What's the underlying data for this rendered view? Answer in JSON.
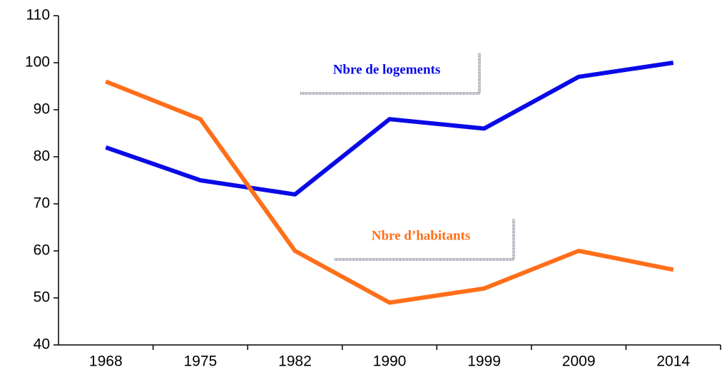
{
  "chart_data": {
    "type": "line",
    "categories": [
      "1968",
      "1975",
      "1982",
      "1990",
      "1999",
      "2009",
      "2014"
    ],
    "series": [
      {
        "name": "Nbre de logements",
        "color": "#0a0ae6",
        "values": [
          82,
          75,
          72,
          88,
          86,
          97,
          100
        ]
      },
      {
        "name": "Nbre d’habitants",
        "color": "#ff6f1a",
        "values": [
          96,
          88,
          60,
          49,
          52,
          60,
          56
        ]
      }
    ],
    "ylim": [
      40,
      110
    ],
    "yticks": [
      40,
      50,
      60,
      70,
      80,
      90,
      100,
      110
    ],
    "grid": false
  }
}
